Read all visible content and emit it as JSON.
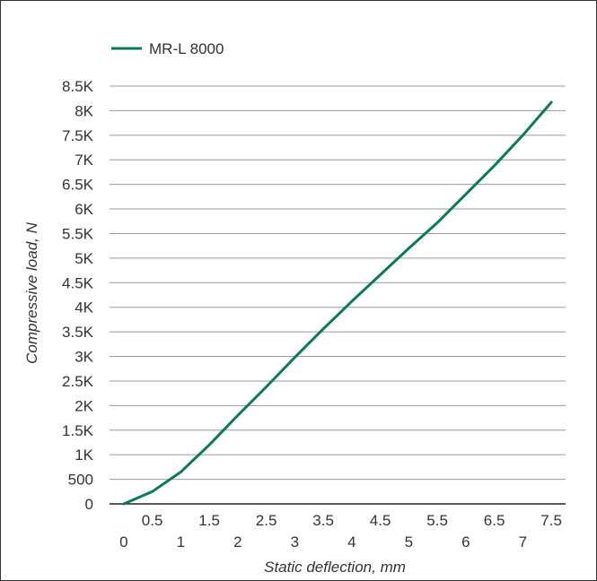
{
  "chart_data": {
    "type": "line",
    "title": "",
    "xlabel": "Static deflection, mm",
    "ylabel": "Compressive load, N",
    "xlim": [
      -0.25,
      7.75
    ],
    "ylim": [
      0,
      8500
    ],
    "grid": true,
    "legend_position": "top-left",
    "x_tick_labels_lower": [
      "0",
      "1",
      "2",
      "3",
      "4",
      "5",
      "6",
      "7"
    ],
    "x_tick_labels_upper": [
      "0.5",
      "1.5",
      "2.5",
      "3.5",
      "4.5",
      "5.5",
      "6.5",
      "7.5"
    ],
    "y_tick_labels": [
      "0",
      "500",
      "1K",
      "1.5K",
      "2K",
      "2.5K",
      "3K",
      "3.5K",
      "4K",
      "4.5K",
      "5K",
      "5.5K",
      "6K",
      "6.5K",
      "7K",
      "7.5K",
      "8K",
      "8.5K"
    ],
    "series": [
      {
        "name": "MR-L 8000",
        "color": "#0b7a55",
        "x": [
          0,
          0.5,
          1,
          1.5,
          2,
          2.5,
          3,
          3.5,
          4,
          4.5,
          5,
          5.5,
          6,
          6.5,
          7,
          7.5
        ],
        "y": [
          0,
          250,
          650,
          1200,
          1800,
          2380,
          2980,
          3560,
          4120,
          4660,
          5200,
          5720,
          6300,
          6880,
          7500,
          8170
        ]
      }
    ]
  }
}
